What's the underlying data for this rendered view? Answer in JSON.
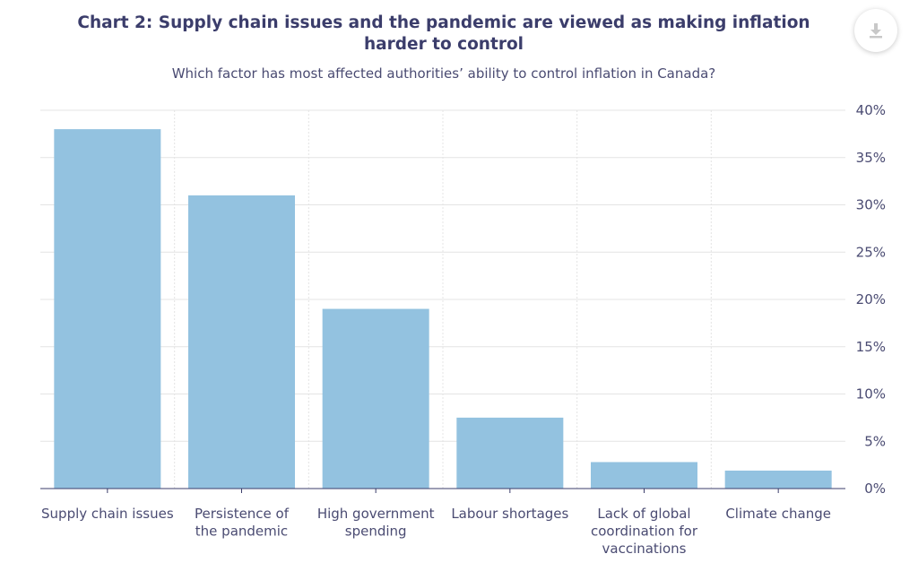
{
  "chart_data": {
    "type": "bar",
    "title": "Chart 2: Supply chain issues and the pandemic are viewed as making inflation harder to control",
    "subtitle": "Which factor has most affected authorities’ ability to control inflation in Canada?",
    "categories": [
      [
        "Supply chain issues"
      ],
      [
        "Persistence of",
        "the pandemic"
      ],
      [
        "High government",
        "spending"
      ],
      [
        "Labour shortages"
      ],
      [
        "Lack of global",
        "coordination for",
        "vaccinations"
      ],
      [
        "Climate change"
      ]
    ],
    "values": [
      38,
      31,
      19,
      7.5,
      2.8,
      1.9
    ],
    "ylim": [
      0,
      40
    ],
    "yticks": [
      0,
      5,
      10,
      15,
      20,
      25,
      30,
      35,
      40
    ],
    "ytick_suffix": "%",
    "yaxis_side": "right",
    "grid": true,
    "colors": {
      "bar": "#93c2e0",
      "grid": "#e4e4e4",
      "axis": "#3b3d6b"
    }
  },
  "toolbar": {
    "download_icon": "download-icon"
  }
}
